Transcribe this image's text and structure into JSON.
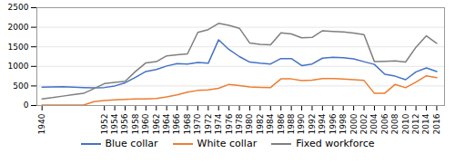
{
  "chart_data": {
    "type": "line",
    "x": [
      1940,
      1942,
      1944,
      1946,
      1948,
      1950,
      1952,
      1954,
      1956,
      1958,
      1960,
      1962,
      1964,
      1966,
      1968,
      1970,
      1972,
      1974,
      1976,
      1978,
      1980,
      1982,
      1984,
      1986,
      1988,
      1990,
      1992,
      1994,
      1996,
      1998,
      2000,
      2002,
      2004,
      2006,
      2008,
      2010,
      2012,
      2014,
      2016
    ],
    "series": [
      {
        "name": "Blue collar",
        "color": "#4472c4",
        "values": [
          470,
          475,
          478,
          470,
          460,
          450,
          460,
          500,
          580,
          720,
          870,
          920,
          1010,
          1070,
          1060,
          1100,
          1080,
          1680,
          1430,
          1250,
          1110,
          1080,
          1060,
          1200,
          1200,
          1020,
          1060,
          1210,
          1230,
          1220,
          1190,
          1120,
          1050,
          800,
          750,
          660,
          860,
          960,
          870
        ]
      },
      {
        "name": "White collar",
        "color": "#ed7d31",
        "values": [
          10,
          10,
          10,
          10,
          10,
          100,
          130,
          145,
          155,
          165,
          170,
          180,
          220,
          270,
          340,
          385,
          400,
          440,
          540,
          510,
          475,
          465,
          460,
          680,
          680,
          635,
          650,
          690,
          690,
          675,
          660,
          640,
          310,
          315,
          540,
          455,
          600,
          760,
          710
        ]
      },
      {
        "name": "Fixed workforce",
        "color": "#7f7f7f",
        "values": [
          170,
          200,
          240,
          280,
          310,
          430,
          560,
          590,
          620,
          870,
          1090,
          1120,
          1270,
          1295,
          1320,
          1870,
          1940,
          2100,
          2050,
          1975,
          1595,
          1560,
          1550,
          1860,
          1830,
          1730,
          1740,
          1910,
          1895,
          1880,
          1850,
          1810,
          1120,
          1130,
          1140,
          1110,
          1490,
          1780,
          1590
        ]
      }
    ],
    "xlim": [
      1939,
      2017.5
    ],
    "xticks": [
      1940,
      1952,
      1954,
      1956,
      1958,
      1960,
      1962,
      1964,
      1966,
      1968,
      1970,
      1972,
      1974,
      1976,
      1978,
      1980,
      1982,
      1984,
      1986,
      1988,
      1990,
      1992,
      1994,
      1996,
      1998,
      2000,
      2002,
      2004,
      2006,
      2008,
      2010,
      2012,
      2014,
      2016
    ],
    "ylim": [
      0,
      2500
    ],
    "yticks": [
      0,
      500,
      1000,
      1500,
      2000,
      2500
    ],
    "grid": "y",
    "legend": "bottom"
  }
}
